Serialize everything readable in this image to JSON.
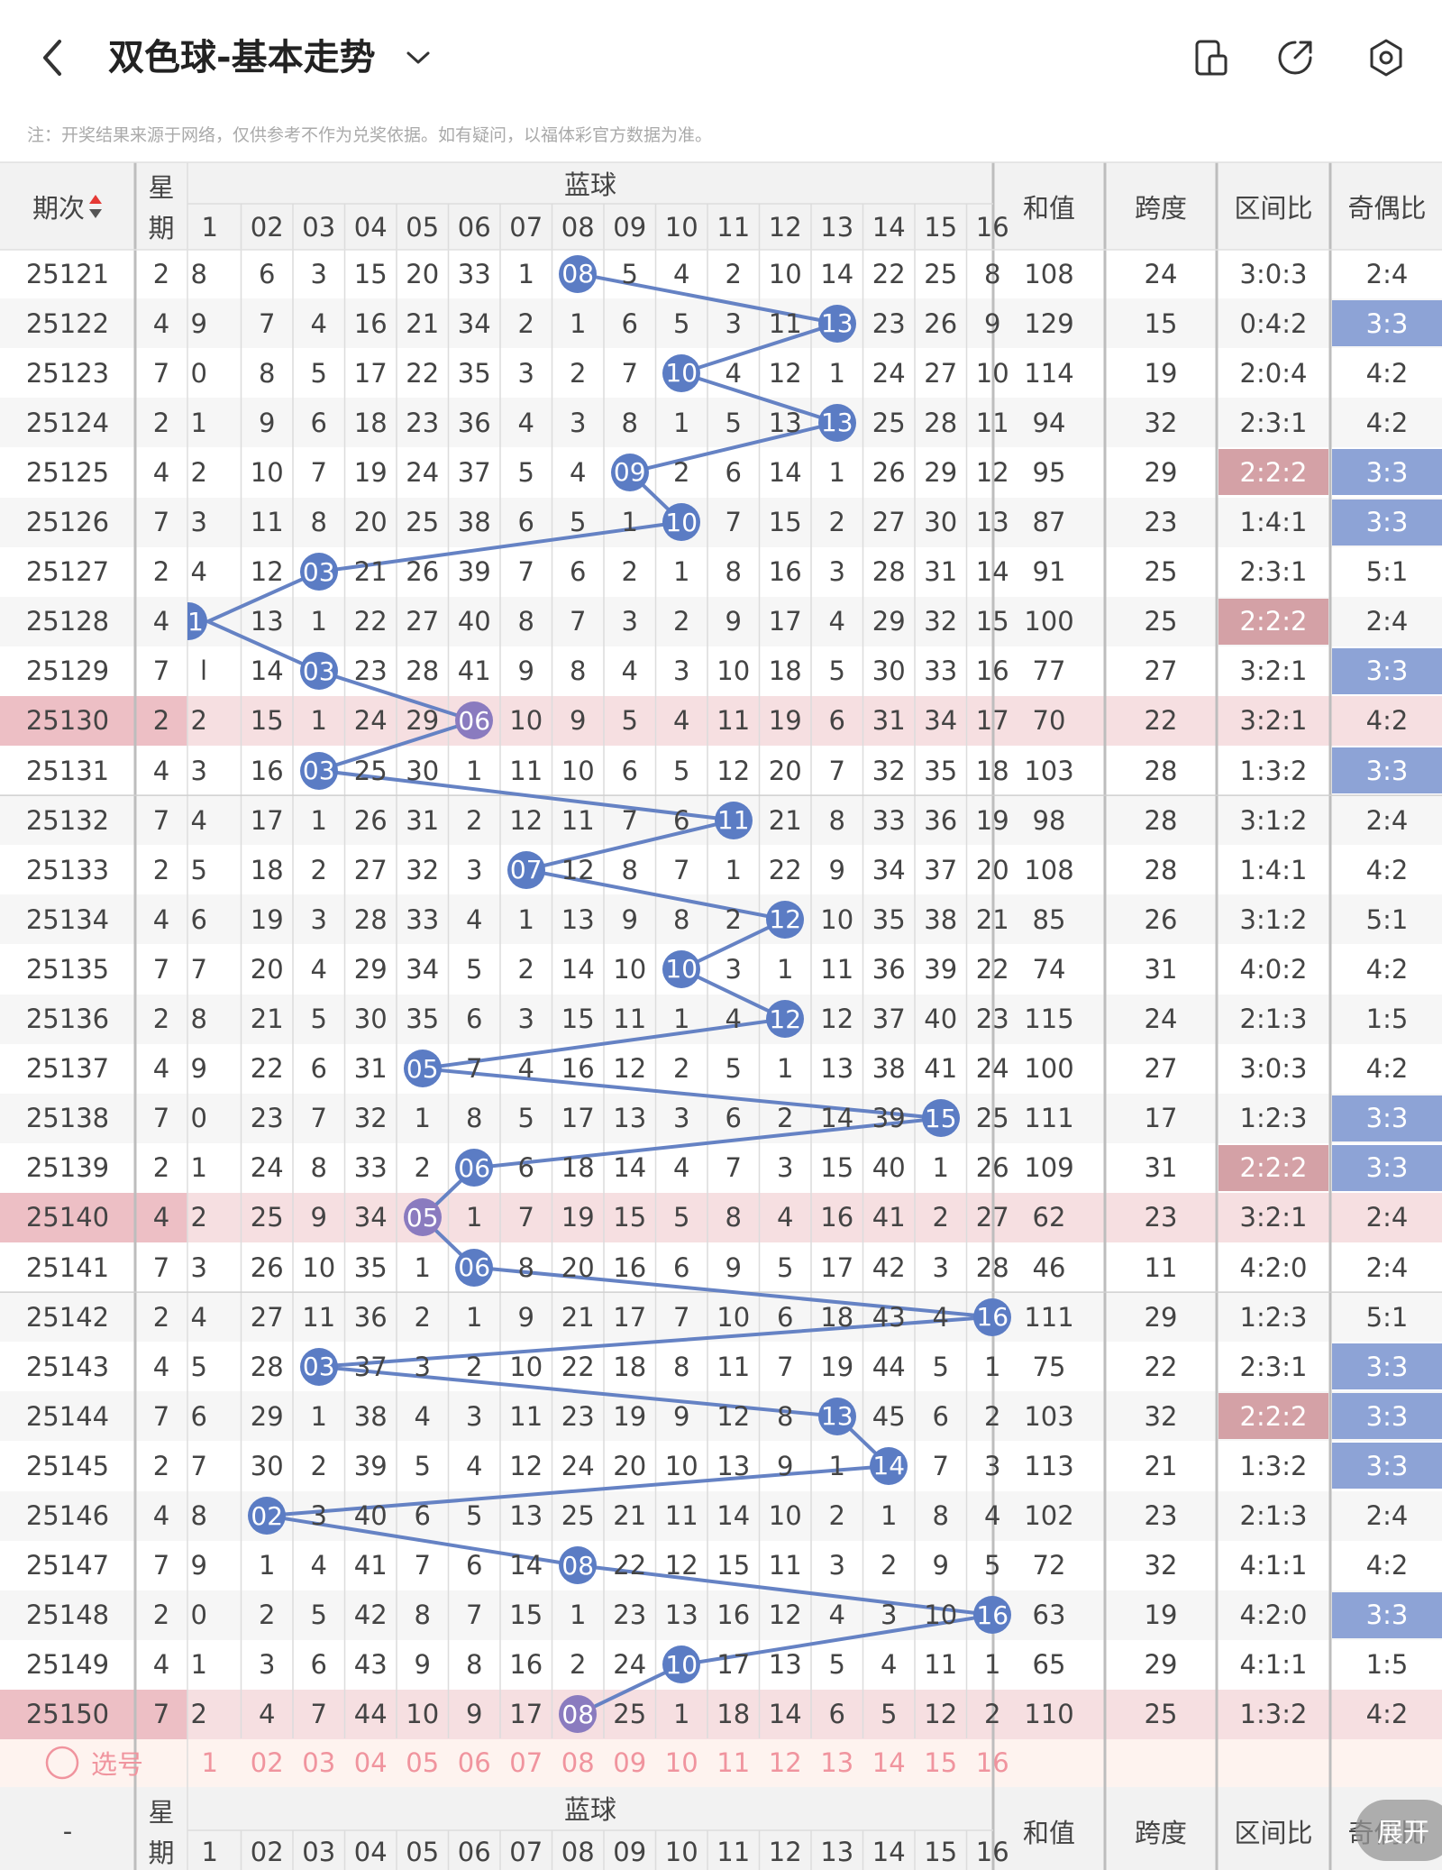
{
  "header": {
    "title": "双色球-基本走势",
    "back_icon": "chevron-left-icon",
    "dropdown_icon": "chevron-down-icon",
    "actions": [
      "phone-split-icon",
      "share-icon",
      "settings-icon"
    ]
  },
  "notice": "注：开奖结果来源于网络，仅供参考不作为兑奖依据。如有疑问，以福体彩官方数据为准。",
  "columns": {
    "period": "期次",
    "weekday_top": "星",
    "weekday_bottom": "期",
    "blue_group": "蓝球",
    "blue_numbers": [
      "1",
      "02",
      "03",
      "04",
      "05",
      "06",
      "07",
      "08",
      "09",
      "10",
      "11",
      "12",
      "13",
      "14",
      "15",
      "16"
    ],
    "sum": "和值",
    "span": "跨度",
    "zone_ratio": "区间比",
    "parity_ratio": "奇偶比"
  },
  "rows": [
    {
      "period": "25121",
      "weekday": "2",
      "cells": [
        "8",
        "6",
        "3",
        "15",
        "20",
        "33",
        "1",
        "08",
        "5",
        "4",
        "2",
        "10",
        "14",
        "22",
        "25",
        "8"
      ],
      "hit": "08",
      "sum": "108",
      "span": "24",
      "zone": "3:0:3",
      "parity": "2:4"
    },
    {
      "period": "25122",
      "weekday": "4",
      "cells": [
        "9",
        "7",
        "4",
        "16",
        "21",
        "34",
        "2",
        "1",
        "6",
        "5",
        "3",
        "11",
        "13",
        "23",
        "26",
        "9"
      ],
      "hit": "13",
      "sum": "129",
      "span": "15",
      "zone": "0:4:2",
      "parity": "3:3"
    },
    {
      "period": "25123",
      "weekday": "7",
      "cells": [
        "0",
        "8",
        "5",
        "17",
        "22",
        "35",
        "3",
        "2",
        "7",
        "10",
        "4",
        "12",
        "1",
        "24",
        "27",
        "10"
      ],
      "hit": "10",
      "sum": "114",
      "span": "19",
      "zone": "2:0:4",
      "parity": "4:2"
    },
    {
      "period": "25124",
      "weekday": "2",
      "cells": [
        "1",
        "9",
        "6",
        "18",
        "23",
        "36",
        "4",
        "3",
        "8",
        "1",
        "5",
        "13",
        "13",
        "25",
        "28",
        "11"
      ],
      "hit": "13",
      "sum": "94",
      "span": "32",
      "zone": "2:3:1",
      "parity": "4:2"
    },
    {
      "period": "25125",
      "weekday": "4",
      "cells": [
        "2",
        "10",
        "7",
        "19",
        "24",
        "37",
        "5",
        "4",
        "09",
        "2",
        "6",
        "14",
        "1",
        "26",
        "29",
        "12"
      ],
      "hit": "09",
      "sum": "95",
      "span": "29",
      "zone": "2:2:2",
      "parity": "3:3"
    },
    {
      "period": "25126",
      "weekday": "7",
      "cells": [
        "3",
        "11",
        "8",
        "20",
        "25",
        "38",
        "6",
        "5",
        "1",
        "10",
        "7",
        "15",
        "2",
        "27",
        "30",
        "13"
      ],
      "hit": "10",
      "sum": "87",
      "span": "23",
      "zone": "1:4:1",
      "parity": "3:3"
    },
    {
      "period": "25127",
      "weekday": "2",
      "cells": [
        "4",
        "12",
        "03",
        "21",
        "26",
        "39",
        "7",
        "6",
        "2",
        "1",
        "8",
        "16",
        "3",
        "28",
        "31",
        "14"
      ],
      "hit": "03",
      "sum": "91",
      "span": "25",
      "zone": "2:3:1",
      "parity": "5:1"
    },
    {
      "period": "25128",
      "weekday": "4",
      "cells": [
        "1",
        "13",
        "1",
        "22",
        "27",
        "40",
        "8",
        "7",
        "3",
        "2",
        "9",
        "17",
        "4",
        "29",
        "32",
        "15"
      ],
      "hit": "01",
      "sum": "100",
      "span": "25",
      "zone": "2:2:2",
      "parity": "2:4"
    },
    {
      "period": "25129",
      "weekday": "7",
      "cells": [
        "l",
        "14",
        "03",
        "23",
        "28",
        "41",
        "9",
        "8",
        "4",
        "3",
        "10",
        "18",
        "5",
        "30",
        "33",
        "16"
      ],
      "hit": "03",
      "sum": "77",
      "span": "27",
      "zone": "3:2:1",
      "parity": "3:3"
    },
    {
      "period": "25130",
      "weekday": "2",
      "cells": [
        "2",
        "15",
        "1",
        "24",
        "29",
        "06",
        "10",
        "9",
        "5",
        "4",
        "11",
        "19",
        "6",
        "31",
        "34",
        "17"
      ],
      "hit": "06",
      "sum": "70",
      "span": "22",
      "zone": "3:2:1",
      "parity": "4:2"
    },
    {
      "period": "25131",
      "weekday": "4",
      "cells": [
        "3",
        "16",
        "03",
        "25",
        "30",
        "1",
        "11",
        "10",
        "6",
        "5",
        "12",
        "20",
        "7",
        "32",
        "35",
        "18"
      ],
      "hit": "03",
      "sum": "103",
      "span": "28",
      "zone": "1:3:2",
      "parity": "3:3"
    },
    {
      "period": "25132",
      "weekday": "7",
      "cells": [
        "4",
        "17",
        "1",
        "26",
        "31",
        "2",
        "12",
        "11",
        "7",
        "6",
        "11",
        "21",
        "8",
        "33",
        "36",
        "19"
      ],
      "hit": "11",
      "sum": "98",
      "span": "28",
      "zone": "3:1:2",
      "parity": "2:4"
    },
    {
      "period": "25133",
      "weekday": "2",
      "cells": [
        "5",
        "18",
        "2",
        "27",
        "32",
        "3",
        "07",
        "12",
        "8",
        "7",
        "1",
        "22",
        "9",
        "34",
        "37",
        "20"
      ],
      "hit": "07",
      "sum": "108",
      "span": "28",
      "zone": "1:4:1",
      "parity": "4:2"
    },
    {
      "period": "25134",
      "weekday": "4",
      "cells": [
        "6",
        "19",
        "3",
        "28",
        "33",
        "4",
        "1",
        "13",
        "9",
        "8",
        "2",
        "12",
        "10",
        "35",
        "38",
        "21"
      ],
      "hit": "12",
      "sum": "85",
      "span": "26",
      "zone": "3:1:2",
      "parity": "5:1"
    },
    {
      "period": "25135",
      "weekday": "7",
      "cells": [
        "7",
        "20",
        "4",
        "29",
        "34",
        "5",
        "2",
        "14",
        "10",
        "10",
        "3",
        "1",
        "11",
        "36",
        "39",
        "22"
      ],
      "hit": "10",
      "sum": "74",
      "span": "31",
      "zone": "4:0:2",
      "parity": "4:2"
    },
    {
      "period": "25136",
      "weekday": "2",
      "cells": [
        "8",
        "21",
        "5",
        "30",
        "35",
        "6",
        "3",
        "15",
        "11",
        "1",
        "4",
        "12",
        "12",
        "37",
        "40",
        "23"
      ],
      "hit": "12",
      "sum": "115",
      "span": "24",
      "zone": "2:1:3",
      "parity": "1:5"
    },
    {
      "period": "25137",
      "weekday": "4",
      "cells": [
        "9",
        "22",
        "6",
        "31",
        "05",
        "7",
        "4",
        "16",
        "12",
        "2",
        "5",
        "1",
        "13",
        "38",
        "41",
        "24"
      ],
      "hit": "05",
      "sum": "100",
      "span": "27",
      "zone": "3:0:3",
      "parity": "4:2"
    },
    {
      "period": "25138",
      "weekday": "7",
      "cells": [
        "0",
        "23",
        "7",
        "32",
        "1",
        "8",
        "5",
        "17",
        "13",
        "3",
        "6",
        "2",
        "14",
        "39",
        "15",
        "25"
      ],
      "hit": "15",
      "sum": "111",
      "span": "17",
      "zone": "1:2:3",
      "parity": "3:3"
    },
    {
      "period": "25139",
      "weekday": "2",
      "cells": [
        "1",
        "24",
        "8",
        "33",
        "2",
        "06",
        "6",
        "18",
        "14",
        "4",
        "7",
        "3",
        "15",
        "40",
        "1",
        "26"
      ],
      "hit": "06",
      "sum": "109",
      "span": "31",
      "zone": "2:2:2",
      "parity": "3:3"
    },
    {
      "period": "25140",
      "weekday": "4",
      "cells": [
        "2",
        "25",
        "9",
        "34",
        "05",
        "1",
        "7",
        "19",
        "15",
        "5",
        "8",
        "4",
        "16",
        "41",
        "2",
        "27"
      ],
      "hit": "05",
      "sum": "62",
      "span": "23",
      "zone": "3:2:1",
      "parity": "2:4"
    },
    {
      "period": "25141",
      "weekday": "7",
      "cells": [
        "3",
        "26",
        "10",
        "35",
        "1",
        "06",
        "8",
        "20",
        "16",
        "6",
        "9",
        "5",
        "17",
        "42",
        "3",
        "28"
      ],
      "hit": "06",
      "sum": "46",
      "span": "11",
      "zone": "4:2:0",
      "parity": "2:4"
    },
    {
      "period": "25142",
      "weekday": "2",
      "cells": [
        "4",
        "27",
        "11",
        "36",
        "2",
        "1",
        "9",
        "21",
        "17",
        "7",
        "10",
        "6",
        "18",
        "43",
        "4",
        "16"
      ],
      "hit": "16",
      "sum": "111",
      "span": "29",
      "zone": "1:2:3",
      "parity": "5:1"
    },
    {
      "period": "25143",
      "weekday": "4",
      "cells": [
        "5",
        "28",
        "03",
        "37",
        "3",
        "2",
        "10",
        "22",
        "18",
        "8",
        "11",
        "7",
        "19",
        "44",
        "5",
        "1"
      ],
      "hit": "03",
      "sum": "75",
      "span": "22",
      "zone": "2:3:1",
      "parity": "3:3"
    },
    {
      "period": "25144",
      "weekday": "7",
      "cells": [
        "6",
        "29",
        "1",
        "38",
        "4",
        "3",
        "11",
        "23",
        "19",
        "9",
        "12",
        "8",
        "13",
        "45",
        "6",
        "2"
      ],
      "hit": "13",
      "sum": "103",
      "span": "32",
      "zone": "2:2:2",
      "parity": "3:3"
    },
    {
      "period": "25145",
      "weekday": "2",
      "cells": [
        "7",
        "30",
        "2",
        "39",
        "5",
        "4",
        "12",
        "24",
        "20",
        "10",
        "13",
        "9",
        "1",
        "14",
        "7",
        "3"
      ],
      "hit": "14",
      "sum": "113",
      "span": "21",
      "zone": "1:3:2",
      "parity": "3:3"
    },
    {
      "period": "25146",
      "weekday": "4",
      "cells": [
        "8",
        "02",
        "3",
        "40",
        "6",
        "5",
        "13",
        "25",
        "21",
        "11",
        "14",
        "10",
        "2",
        "1",
        "8",
        "4"
      ],
      "hit": "02",
      "sum": "102",
      "span": "23",
      "zone": "2:1:3",
      "parity": "2:4"
    },
    {
      "period": "25147",
      "weekday": "7",
      "cells": [
        "9",
        "1",
        "4",
        "41",
        "7",
        "6",
        "14",
        "08",
        "22",
        "12",
        "15",
        "11",
        "3",
        "2",
        "9",
        "5"
      ],
      "hit": "08",
      "sum": "72",
      "span": "32",
      "zone": "4:1:1",
      "parity": "4:2"
    },
    {
      "period": "25148",
      "weekday": "2",
      "cells": [
        "0",
        "2",
        "5",
        "42",
        "8",
        "7",
        "15",
        "1",
        "23",
        "13",
        "16",
        "12",
        "4",
        "3",
        "10",
        "16"
      ],
      "hit": "16",
      "sum": "63",
      "span": "19",
      "zone": "4:2:0",
      "parity": "3:3"
    },
    {
      "period": "25149",
      "weekday": "4",
      "cells": [
        "1",
        "3",
        "6",
        "43",
        "9",
        "8",
        "16",
        "2",
        "24",
        "10",
        "17",
        "13",
        "5",
        "4",
        "11",
        "1"
      ],
      "hit": "10",
      "sum": "65",
      "span": "29",
      "zone": "4:1:1",
      "parity": "1:5"
    },
    {
      "period": "25150",
      "weekday": "7",
      "cells": [
        "2",
        "4",
        "7",
        "44",
        "10",
        "9",
        "17",
        "08",
        "25",
        "1",
        "18",
        "14",
        "6",
        "5",
        "12",
        "2"
      ],
      "hit": "08",
      "sum": "110",
      "span": "25",
      "zone": "1:3:2",
      "parity": "4:2"
    }
  ],
  "select_row": {
    "label": "选号",
    "icon": "radio-circle-icon"
  },
  "footer_header": {
    "period": "-"
  },
  "fab_label": "展开",
  "colors": {
    "ball": "#5b7cc4",
    "ball_highlight": "#8a7bbf",
    "line": "#6582c4",
    "highlight_row": "#f6dfe1",
    "highlight_left": "#edbfc5",
    "zone_highlight": "#d4a1a6",
    "parity_highlight": "#8da3d6",
    "select_text": "#f0949e",
    "select_bg": "#fef3ef"
  }
}
